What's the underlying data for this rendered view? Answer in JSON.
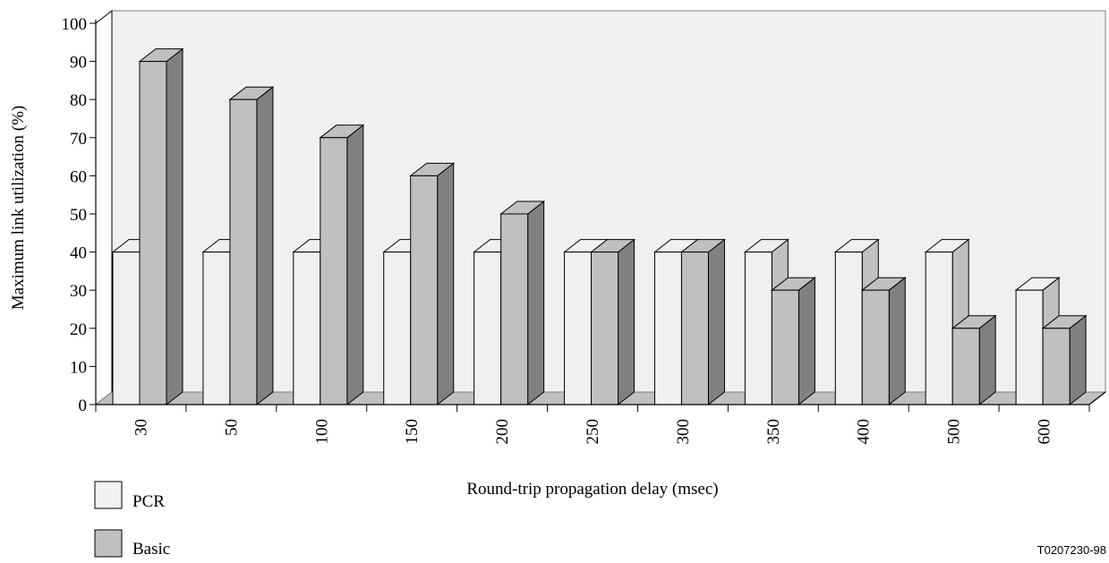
{
  "chart_data": {
    "type": "bar",
    "style": "3d-clustered-column",
    "xlabel": "Round-trip propagation delay (msec)",
    "ylabel": "Maximum link utilization (%)",
    "categories": [
      "30",
      "50",
      "100",
      "150",
      "200",
      "250",
      "300",
      "350",
      "400",
      "500",
      "600"
    ],
    "series": [
      {
        "name": "PCR",
        "values": [
          40,
          40,
          40,
          40,
          40,
          40,
          40,
          40,
          40,
          40,
          30
        ],
        "color": "#f0f0f0"
      },
      {
        "name": "Basic",
        "values": [
          90,
          80,
          70,
          60,
          50,
          40,
          40,
          30,
          30,
          20,
          20
        ],
        "color": "#c0c0c0"
      }
    ],
    "ylim": [
      0,
      100
    ],
    "yticks": [
      0,
      10,
      20,
      30,
      40,
      50,
      60,
      70,
      80,
      90,
      100
    ],
    "legend_position": "bottom-left",
    "grid": false
  },
  "colors": {
    "wall": "#f0f0f0",
    "floor": "#c0c0c0",
    "pcr_front": "#f0f0f0",
    "pcr_side": "#c0c0c0",
    "basic_front": "#c0c0c0",
    "basic_side": "#808080",
    "outline": "#000000"
  },
  "figure_id": "T0207230-98"
}
